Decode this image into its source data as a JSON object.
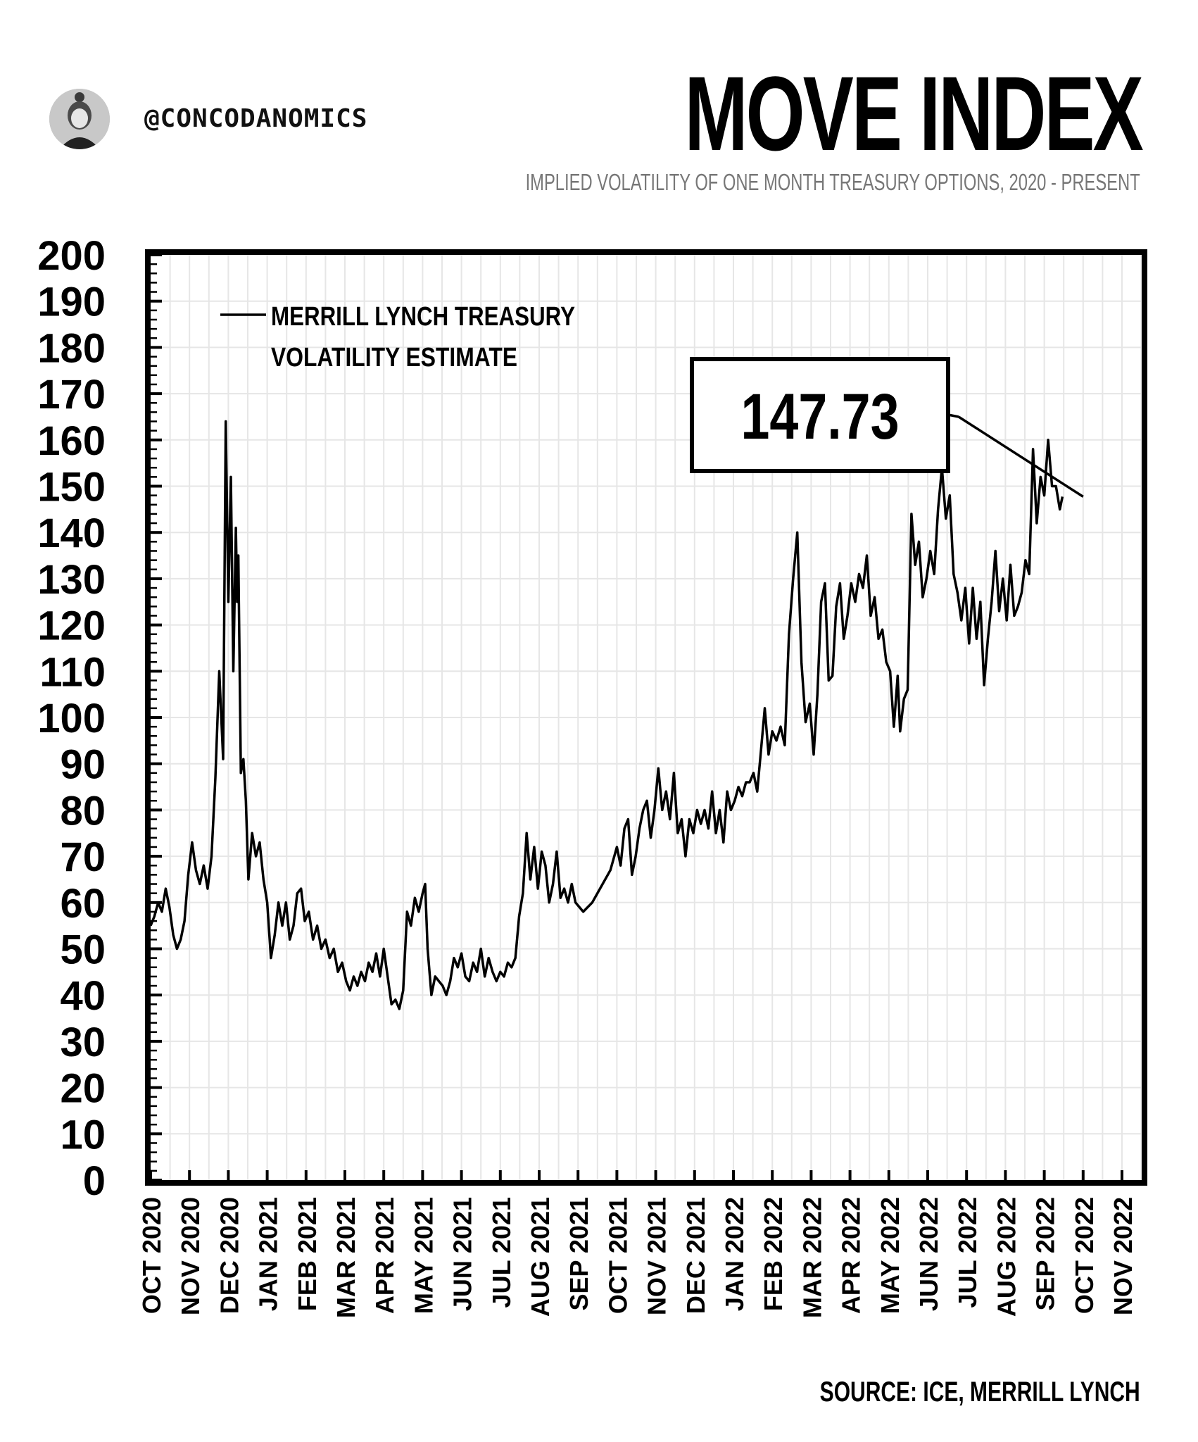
{
  "header": {
    "handle": "@CONCODANOMICS",
    "title": "MOVE INDEX",
    "subtitle": "IMPLIED VOLATILITY OF ONE MONTH TREASURY OPTIONS, 2020 - PRESENT"
  },
  "footer": {
    "source": "SOURCE: ICE, MERRILL LYNCH"
  },
  "chart_data": {
    "type": "line",
    "title": "MOVE INDEX",
    "subtitle": "IMPLIED VOLATILITY OF ONE MONTH TREASURY OPTIONS, 2020 - PRESENT",
    "xlabel": "",
    "ylabel": "",
    "ylim": [
      0,
      200
    ],
    "yticks": [
      0,
      10,
      20,
      30,
      40,
      50,
      60,
      70,
      80,
      90,
      100,
      110,
      120,
      130,
      140,
      150,
      160,
      170,
      180,
      190,
      200
    ],
    "x_tick_labels": [
      "OCT 2020",
      "NOV 2020",
      "DEC 2020",
      "JAN 2021",
      "FEB 2021",
      "MAR 2021",
      "APR 2021",
      "MAY 2021",
      "JUN 2021",
      "JUL 2021",
      "AUG 2021",
      "SEP 2021",
      "OCT 2021",
      "NOV 2021",
      "DEC 2021",
      "JAN 2022",
      "FEB 2022",
      "MAR 2022",
      "APR 2022",
      "MAY 2022",
      "JUN 2022",
      "JUL 2022",
      "AUG 2022",
      "SEP 2022",
      "OCT 2022",
      "NOV 2022"
    ],
    "grid": true,
    "legend": {
      "position": "top-left",
      "entries": [
        "MERRILL LYNCH TREASURY",
        "VOLATILITY ESTIMATE"
      ]
    },
    "annotation": {
      "text": "147.73",
      "target": {
        "x": "2022-10-01",
        "y": 147.73
      }
    },
    "series": [
      {
        "name": "MERRILL LYNCH TREASURY VOLATILITY ESTIMATE",
        "color": "#000000",
        "points": [
          [
            "2020-10-01",
            55
          ],
          [
            "2020-10-04",
            57
          ],
          [
            "2020-10-07",
            60
          ],
          [
            "2020-10-10",
            58
          ],
          [
            "2020-10-13",
            63
          ],
          [
            "2020-10-16",
            59
          ],
          [
            "2020-10-19",
            53
          ],
          [
            "2020-10-22",
            50
          ],
          [
            "2020-10-25",
            52
          ],
          [
            "2020-10-28",
            56
          ],
          [
            "2020-10-31",
            66
          ],
          [
            "2020-11-03",
            73
          ],
          [
            "2020-11-06",
            67
          ],
          [
            "2020-11-09",
            64
          ],
          [
            "2020-11-12",
            68
          ],
          [
            "2020-11-15",
            63
          ],
          [
            "2020-11-18",
            70
          ],
          [
            "2020-11-21",
            87
          ],
          [
            "2020-11-24",
            110
          ],
          [
            "2020-11-27",
            91
          ],
          [
            "2020-11-29",
            164
          ],
          [
            "2020-12-01",
            125
          ],
          [
            "2020-12-03",
            152
          ],
          [
            "2020-12-05",
            110
          ],
          [
            "2020-12-07",
            141
          ],
          [
            "2020-12-08",
            125
          ],
          [
            "2020-12-09",
            135
          ],
          [
            "2020-12-11",
            88
          ],
          [
            "2020-12-13",
            91
          ],
          [
            "2020-12-15",
            82
          ],
          [
            "2020-12-17",
            65
          ],
          [
            "2020-12-20",
            75
          ],
          [
            "2020-12-23",
            70
          ],
          [
            "2020-12-26",
            73
          ],
          [
            "2020-12-29",
            65
          ],
          [
            "2021-01-01",
            60
          ],
          [
            "2021-01-04",
            48
          ],
          [
            "2021-01-07",
            53
          ],
          [
            "2021-01-10",
            60
          ],
          [
            "2021-01-13",
            55
          ],
          [
            "2021-01-16",
            60
          ],
          [
            "2021-01-19",
            52
          ],
          [
            "2021-01-22",
            55
          ],
          [
            "2021-01-25",
            62
          ],
          [
            "2021-01-28",
            63
          ],
          [
            "2021-01-31",
            56
          ],
          [
            "2021-02-03",
            58
          ],
          [
            "2021-02-06",
            52
          ],
          [
            "2021-02-09",
            55
          ],
          [
            "2021-02-12",
            50
          ],
          [
            "2021-02-15",
            52
          ],
          [
            "2021-02-18",
            48
          ],
          [
            "2021-02-21",
            50
          ],
          [
            "2021-02-24",
            45
          ],
          [
            "2021-02-27",
            47
          ],
          [
            "2021-03-02",
            43
          ],
          [
            "2021-03-05",
            41
          ],
          [
            "2021-03-08",
            44
          ],
          [
            "2021-03-11",
            42
          ],
          [
            "2021-03-14",
            45
          ],
          [
            "2021-03-17",
            43
          ],
          [
            "2021-03-20",
            47
          ],
          [
            "2021-03-23",
            45
          ],
          [
            "2021-03-26",
            49
          ],
          [
            "2021-03-29",
            44
          ],
          [
            "2021-04-01",
            50
          ],
          [
            "2021-04-04",
            44
          ],
          [
            "2021-04-07",
            38
          ],
          [
            "2021-04-10",
            39
          ],
          [
            "2021-04-13",
            37
          ],
          [
            "2021-04-16",
            41
          ],
          [
            "2021-04-19",
            58
          ],
          [
            "2021-04-22",
            55
          ],
          [
            "2021-04-25",
            61
          ],
          [
            "2021-04-28",
            58
          ],
          [
            "2021-05-01",
            62
          ],
          [
            "2021-05-03",
            64
          ],
          [
            "2021-05-05",
            50
          ],
          [
            "2021-05-08",
            40
          ],
          [
            "2021-05-11",
            44
          ],
          [
            "2021-05-14",
            43
          ],
          [
            "2021-05-17",
            42
          ],
          [
            "2021-05-20",
            40
          ],
          [
            "2021-05-23",
            43
          ],
          [
            "2021-05-26",
            48
          ],
          [
            "2021-05-29",
            46
          ],
          [
            "2021-06-01",
            49
          ],
          [
            "2021-06-04",
            44
          ],
          [
            "2021-06-07",
            43
          ],
          [
            "2021-06-10",
            47
          ],
          [
            "2021-06-13",
            45
          ],
          [
            "2021-06-16",
            50
          ],
          [
            "2021-06-19",
            44
          ],
          [
            "2021-06-22",
            48
          ],
          [
            "2021-06-25",
            45
          ],
          [
            "2021-06-28",
            43
          ],
          [
            "2021-07-01",
            45
          ],
          [
            "2021-07-04",
            44
          ],
          [
            "2021-07-07",
            47
          ],
          [
            "2021-07-10",
            46
          ],
          [
            "2021-07-13",
            48
          ],
          [
            "2021-07-16",
            57
          ],
          [
            "2021-07-19",
            62
          ],
          [
            "2021-07-22",
            75
          ],
          [
            "2021-07-25",
            65
          ],
          [
            "2021-07-28",
            72
          ],
          [
            "2021-07-31",
            63
          ],
          [
            "2021-08-03",
            71
          ],
          [
            "2021-08-06",
            68
          ],
          [
            "2021-08-09",
            60
          ],
          [
            "2021-08-12",
            64
          ],
          [
            "2021-08-15",
            71
          ],
          [
            "2021-08-18",
            61
          ],
          [
            "2021-08-21",
            63
          ],
          [
            "2021-08-24",
            60
          ],
          [
            "2021-08-27",
            64
          ],
          [
            "2021-08-30",
            60
          ],
          [
            "2021-09-05",
            58
          ],
          [
            "2021-09-12",
            60
          ],
          [
            "2021-09-26",
            67
          ],
          [
            "2021-10-01",
            72
          ],
          [
            "2021-10-04",
            68
          ],
          [
            "2021-10-07",
            76
          ],
          [
            "2021-10-10",
            78
          ],
          [
            "2021-10-13",
            66
          ],
          [
            "2021-10-16",
            70
          ],
          [
            "2021-10-19",
            76
          ],
          [
            "2021-10-22",
            80
          ],
          [
            "2021-10-25",
            82
          ],
          [
            "2021-10-28",
            74
          ],
          [
            "2021-10-31",
            80
          ],
          [
            "2021-11-03",
            89
          ],
          [
            "2021-11-06",
            80
          ],
          [
            "2021-11-09",
            84
          ],
          [
            "2021-11-12",
            78
          ],
          [
            "2021-11-15",
            88
          ],
          [
            "2021-11-18",
            75
          ],
          [
            "2021-11-21",
            78
          ],
          [
            "2021-11-24",
            70
          ],
          [
            "2021-11-27",
            78
          ],
          [
            "2021-11-30",
            75
          ],
          [
            "2021-12-03",
            80
          ],
          [
            "2021-12-06",
            77
          ],
          [
            "2021-12-09",
            80
          ],
          [
            "2021-12-12",
            76
          ],
          [
            "2021-12-15",
            84
          ],
          [
            "2021-12-18",
            75
          ],
          [
            "2021-12-21",
            80
          ],
          [
            "2021-12-24",
            73
          ],
          [
            "2021-12-27",
            84
          ],
          [
            "2021-12-30",
            80
          ],
          [
            "2022-01-02",
            82
          ],
          [
            "2022-01-05",
            85
          ],
          [
            "2022-01-08",
            83
          ],
          [
            "2022-01-11",
            86
          ],
          [
            "2022-01-14",
            86
          ],
          [
            "2022-01-17",
            88
          ],
          [
            "2022-01-20",
            84
          ],
          [
            "2022-01-23",
            93
          ],
          [
            "2022-01-26",
            102
          ],
          [
            "2022-01-29",
            92
          ],
          [
            "2022-02-01",
            97
          ],
          [
            "2022-02-04",
            95
          ],
          [
            "2022-02-07",
            98
          ],
          [
            "2022-02-10",
            94
          ],
          [
            "2022-02-13",
            118
          ],
          [
            "2022-02-16",
            130
          ],
          [
            "2022-02-19",
            140
          ],
          [
            "2022-02-22",
            112
          ],
          [
            "2022-02-25",
            99
          ],
          [
            "2022-02-28",
            103
          ],
          [
            "2022-03-03",
            92
          ],
          [
            "2022-03-06",
            105
          ],
          [
            "2022-03-09",
            125
          ],
          [
            "2022-03-12",
            129
          ],
          [
            "2022-03-15",
            108
          ],
          [
            "2022-03-18",
            109
          ],
          [
            "2022-03-21",
            124
          ],
          [
            "2022-03-24",
            129
          ],
          [
            "2022-03-27",
            117
          ],
          [
            "2022-03-30",
            122
          ],
          [
            "2022-04-02",
            129
          ],
          [
            "2022-04-05",
            125
          ],
          [
            "2022-04-08",
            131
          ],
          [
            "2022-04-11",
            128
          ],
          [
            "2022-04-14",
            135
          ],
          [
            "2022-04-17",
            122
          ],
          [
            "2022-04-20",
            126
          ],
          [
            "2022-04-23",
            117
          ],
          [
            "2022-04-26",
            119
          ],
          [
            "2022-04-29",
            112
          ],
          [
            "2022-05-02",
            110
          ],
          [
            "2022-05-05",
            98
          ],
          [
            "2022-05-08",
            109
          ],
          [
            "2022-05-10",
            97
          ],
          [
            "2022-05-13",
            104
          ],
          [
            "2022-05-16",
            106
          ],
          [
            "2022-05-19",
            144
          ],
          [
            "2022-05-22",
            133
          ],
          [
            "2022-05-25",
            138
          ],
          [
            "2022-05-28",
            126
          ],
          [
            "2022-05-31",
            130
          ],
          [
            "2022-06-03",
            136
          ],
          [
            "2022-06-06",
            131
          ],
          [
            "2022-06-09",
            145
          ],
          [
            "2022-06-12",
            154
          ],
          [
            "2022-06-15",
            143
          ],
          [
            "2022-06-18",
            148
          ],
          [
            "2022-06-21",
            131
          ],
          [
            "2022-06-24",
            127
          ],
          [
            "2022-06-27",
            121
          ],
          [
            "2022-06-30",
            128
          ],
          [
            "2022-07-03",
            116
          ],
          [
            "2022-07-06",
            128
          ],
          [
            "2022-07-09",
            117
          ],
          [
            "2022-07-12",
            125
          ],
          [
            "2022-07-15",
            107
          ],
          [
            "2022-07-18",
            117
          ],
          [
            "2022-07-21",
            125
          ],
          [
            "2022-07-24",
            136
          ],
          [
            "2022-07-27",
            123
          ],
          [
            "2022-07-30",
            130
          ],
          [
            "2022-08-02",
            121
          ],
          [
            "2022-08-05",
            133
          ],
          [
            "2022-08-08",
            122
          ],
          [
            "2022-08-11",
            124
          ],
          [
            "2022-08-14",
            127
          ],
          [
            "2022-08-17",
            134
          ],
          [
            "2022-08-20",
            131
          ],
          [
            "2022-08-23",
            158
          ],
          [
            "2022-08-26",
            142
          ],
          [
            "2022-08-29",
            152
          ],
          [
            "2022-09-01",
            148
          ],
          [
            "2022-09-04",
            160
          ],
          [
            "2022-09-07",
            150
          ],
          [
            "2022-09-10",
            150
          ],
          [
            "2022-09-13",
            145
          ],
          [
            "2022-09-15",
            147.73
          ]
        ]
      }
    ]
  }
}
